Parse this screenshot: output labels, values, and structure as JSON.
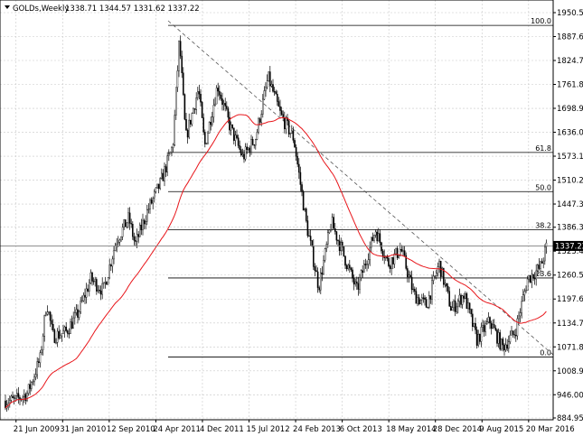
{
  "header": {
    "symbol_text": "GOLDs,Weekly",
    "ohlc_text": "1338.71 1344.57 1331.62 1337.22"
  },
  "price_tag": "1337.22",
  "fib_levels": [
    {
      "label": "100.0",
      "price": 1917
    },
    {
      "label": "61.8",
      "price": 1583
    },
    {
      "label": "50.0",
      "price": 1480
    },
    {
      "label": "38.2",
      "price": 1380
    },
    {
      "label": "23.6",
      "price": 1253
    },
    {
      "label": "0.0",
      "price": 1045
    }
  ],
  "chart_data": {
    "type": "candlestick",
    "ylim": [
      884.95,
      1950.55
    ],
    "y_ticks": [
      "1950.55",
      "1887.65",
      "1824.75",
      "1761.85",
      "1698.95",
      "1636.05",
      "1573.15",
      "1510.25",
      "1447.35",
      "1386.35",
      "1323.45",
      "1260.55",
      "1197.65",
      "1134.70",
      "1071.80",
      "1008.90",
      "946.00",
      "884.95"
    ],
    "x_ticks": [
      "21 Jun 2009",
      "31 Jan 2010",
      "12 Sep 2010",
      "24 Apr 2011",
      "4 Dec 2011",
      "15 Jul 2012",
      "24 Feb 2013",
      "6 Oct 2013",
      "18 May 2014",
      "28 Dec 2014",
      "9 Aug 2015",
      "20 Mar 2016"
    ],
    "close_series": [
      {
        "date": "2009-06",
        "value": 930
      },
      {
        "date": "2009-08",
        "value": 950
      },
      {
        "date": "2009-10",
        "value": 1040
      },
      {
        "date": "2009-11",
        "value": 1190
      },
      {
        "date": "2009-12",
        "value": 1100
      },
      {
        "date": "2010-02",
        "value": 1110
      },
      {
        "date": "2010-04",
        "value": 1160
      },
      {
        "date": "2010-06",
        "value": 1250
      },
      {
        "date": "2010-08",
        "value": 1220
      },
      {
        "date": "2010-10",
        "value": 1350
      },
      {
        "date": "2010-12",
        "value": 1410
      },
      {
        "date": "2011-01",
        "value": 1340
      },
      {
        "date": "2011-03",
        "value": 1430
      },
      {
        "date": "2011-05",
        "value": 1500
      },
      {
        "date": "2011-07",
        "value": 1600
      },
      {
        "date": "2011-08",
        "value": 1880
      },
      {
        "date": "2011-09",
        "value": 1620
      },
      {
        "date": "2011-11",
        "value": 1750
      },
      {
        "date": "2011-12",
        "value": 1600
      },
      {
        "date": "2012-02",
        "value": 1760
      },
      {
        "date": "2012-04",
        "value": 1650
      },
      {
        "date": "2012-06",
        "value": 1570
      },
      {
        "date": "2012-08",
        "value": 1620
      },
      {
        "date": "2012-10",
        "value": 1780
      },
      {
        "date": "2012-12",
        "value": 1680
      },
      {
        "date": "2013-02",
        "value": 1620
      },
      {
        "date": "2013-04",
        "value": 1400
      },
      {
        "date": "2013-06",
        "value": 1230
      },
      {
        "date": "2013-08",
        "value": 1400
      },
      {
        "date": "2013-10",
        "value": 1310
      },
      {
        "date": "2013-12",
        "value": 1220
      },
      {
        "date": "2014-02",
        "value": 1330
      },
      {
        "date": "2014-03",
        "value": 1380
      },
      {
        "date": "2014-05",
        "value": 1290
      },
      {
        "date": "2014-07",
        "value": 1330
      },
      {
        "date": "2014-09",
        "value": 1210
      },
      {
        "date": "2014-11",
        "value": 1180
      },
      {
        "date": "2015-01",
        "value": 1290
      },
      {
        "date": "2015-03",
        "value": 1170
      },
      {
        "date": "2015-05",
        "value": 1210
      },
      {
        "date": "2015-07",
        "value": 1090
      },
      {
        "date": "2015-09",
        "value": 1140
      },
      {
        "date": "2015-11",
        "value": 1070
      },
      {
        "date": "2016-01",
        "value": 1110
      },
      {
        "date": "2016-03",
        "value": 1250
      },
      {
        "date": "2016-05",
        "value": 1280
      },
      {
        "date": "2016-06",
        "value": 1337.22
      }
    ]
  }
}
